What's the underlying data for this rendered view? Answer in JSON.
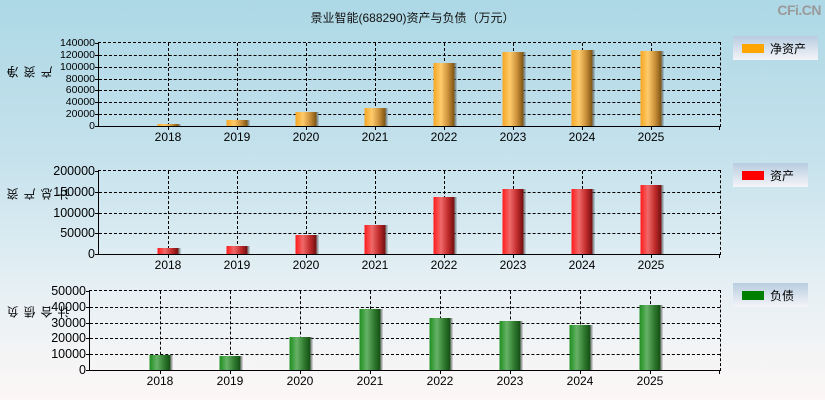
{
  "title": "景业智能(688290)资产与负债（万元）",
  "watermark": "CFi.CN",
  "colors": {
    "net_assets": "#ffa500",
    "total_assets": "#ff0000",
    "total_liabilities": "#008000",
    "background_top": "#add8e6",
    "background_bottom": "#fdf7f6"
  },
  "chart_data": [
    {
      "type": "bar",
      "title": "景业智能(688290)资产与负债（万元）",
      "ylabel": "净资产",
      "xlabel": "",
      "legend": "净资产",
      "legend_position": "right",
      "grid": true,
      "categories": [
        "2018",
        "2019",
        "2020",
        "2021",
        "2022",
        "2023",
        "2024",
        "2025"
      ],
      "values": [
        3800,
        10500,
        23800,
        30500,
        105500,
        125500,
        128800,
        127200
      ],
      "ylim": [
        0,
        140000
      ],
      "yticks": [
        "140000",
        "120000",
        "100000",
        "80000",
        "60000",
        "40000",
        "20000",
        "0"
      ],
      "color": "#ffa500"
    },
    {
      "type": "bar",
      "ylabel": "资产总计",
      "xlabel": "",
      "legend": "资产",
      "legend_position": "right",
      "grid": true,
      "categories": [
        "2018",
        "2019",
        "2020",
        "2021",
        "2022",
        "2023",
        "2024",
        "2025"
      ],
      "values": [
        14300,
        19800,
        45200,
        69000,
        138000,
        157000,
        157000,
        166700
      ],
      "ylim": [
        0,
        200000
      ],
      "yticks": [
        "200000",
        "150000",
        "100000",
        "50000",
        "0"
      ],
      "color": "#ff0000"
    },
    {
      "type": "bar",
      "ylabel": "负债合计",
      "xlabel": "",
      "legend": "负债",
      "legend_position": "right",
      "grid": true,
      "categories": [
        "2018",
        "2019",
        "2020",
        "2021",
        "2022",
        "2023",
        "2024",
        "2025"
      ],
      "values": [
        9400,
        8800,
        21200,
        38800,
        33100,
        31200,
        28800,
        41300
      ],
      "ylim": [
        0,
        50000
      ],
      "yticks": [
        "50000",
        "40000",
        "30000",
        "20000",
        "10000",
        "0"
      ],
      "color": "#008000"
    }
  ]
}
